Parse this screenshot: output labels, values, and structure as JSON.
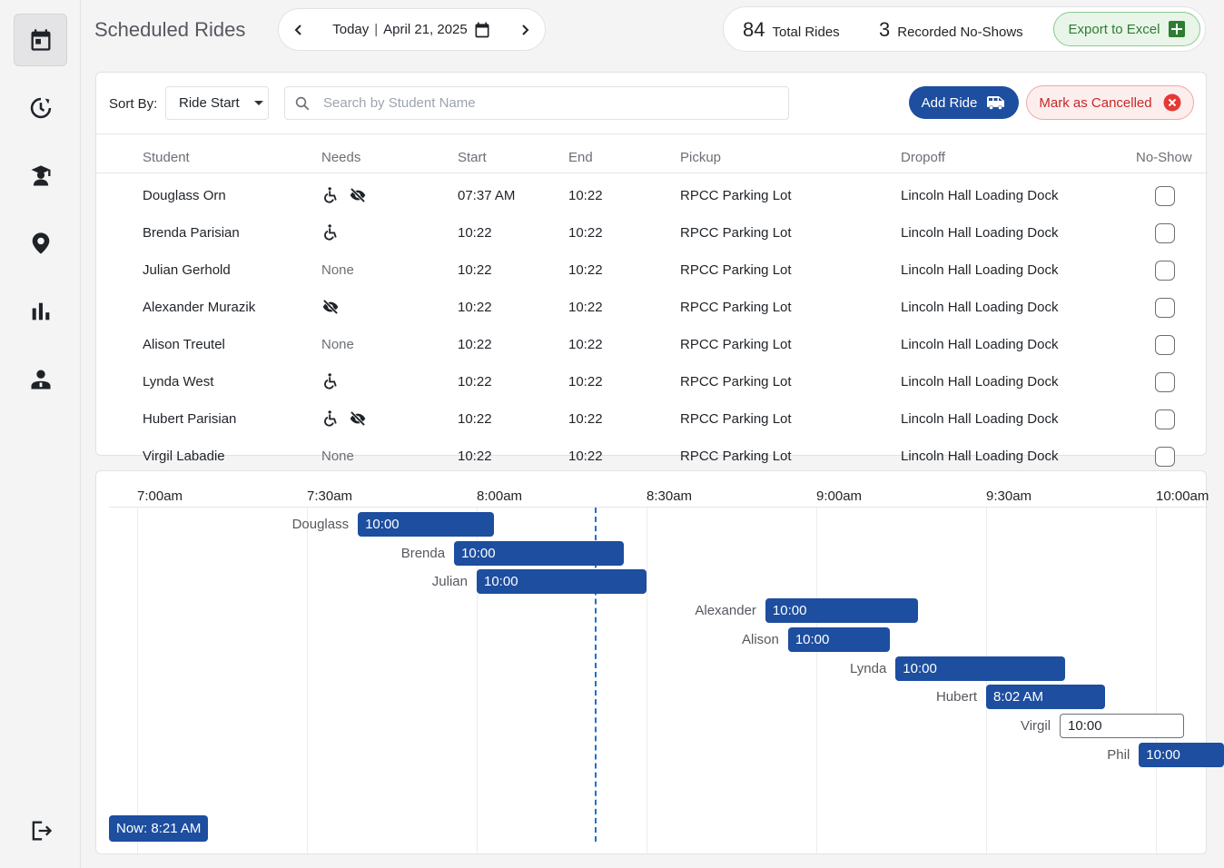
{
  "sidebar": {
    "items": [
      {
        "name": "calendar-icon",
        "active": true
      },
      {
        "name": "clock-icon",
        "active": false
      },
      {
        "name": "student-icon",
        "active": false
      },
      {
        "name": "location-icon",
        "active": false
      },
      {
        "name": "bar-chart-icon",
        "active": false
      },
      {
        "name": "admin-icon",
        "active": false
      }
    ],
    "logout_icon": "logout-icon"
  },
  "header": {
    "title": "Scheduled Rides",
    "date_nav": {
      "today_label": "Today",
      "separator": "|",
      "date": "April 21, 2025"
    },
    "stats": {
      "total_rides": "84",
      "total_rides_label": "Total Rides",
      "no_shows": "3",
      "no_shows_label": "Recorded No-Shows"
    },
    "export_label": "Export to Excel"
  },
  "toolbar": {
    "sort_label": "Sort By:",
    "sort_value": "Ride Start",
    "search_placeholder": "Search by Student Name",
    "add_ride_label": "Add Ride",
    "mark_cancelled_label": "Mark as Cancelled"
  },
  "table": {
    "columns": [
      "Student",
      "Needs",
      "Start",
      "End",
      "Pickup",
      "Dropoff",
      "No-Show"
    ],
    "rows": [
      {
        "student": "Douglass Orn",
        "needs": [
          "wheelchair",
          "visual"
        ],
        "start": "07:37 AM",
        "end": "10:22",
        "pickup": "RPCC Parking Lot",
        "dropoff": "Lincoln Hall Loading Dock",
        "no_show": false
      },
      {
        "student": "Brenda Parisian",
        "needs": [
          "wheelchair"
        ],
        "start": "10:22",
        "end": "10:22",
        "pickup": "RPCC Parking Lot",
        "dropoff": "Lincoln Hall Loading Dock",
        "no_show": false
      },
      {
        "student": "Julian Gerhold",
        "needs": [],
        "needs_text": "None",
        "start": "10:22",
        "end": "10:22",
        "pickup": "RPCC Parking Lot",
        "dropoff": "Lincoln Hall Loading Dock",
        "no_show": false
      },
      {
        "student": "Alexander Murazik",
        "needs": [
          "visual"
        ],
        "start": "10:22",
        "end": "10:22",
        "pickup": "RPCC Parking Lot",
        "dropoff": "Lincoln Hall Loading Dock",
        "no_show": false
      },
      {
        "student": "Alison Treutel",
        "needs": [],
        "needs_text": "None",
        "start": "10:22",
        "end": "10:22",
        "pickup": "RPCC Parking Lot",
        "dropoff": "Lincoln Hall Loading Dock",
        "no_show": false
      },
      {
        "student": "Lynda West",
        "needs": [
          "wheelchair"
        ],
        "start": "10:22",
        "end": "10:22",
        "pickup": "RPCC Parking Lot",
        "dropoff": "Lincoln Hall Loading Dock",
        "no_show": false
      },
      {
        "student": "Hubert Parisian",
        "needs": [
          "wheelchair",
          "visual"
        ],
        "start": "10:22",
        "end": "10:22",
        "pickup": "RPCC Parking Lot",
        "dropoff": "Lincoln Hall Loading Dock",
        "no_show": false
      },
      {
        "student": "Virgil Labadie",
        "needs": [],
        "needs_text": "None",
        "start": "10:22",
        "end": "10:22",
        "pickup": "RPCC Parking Lot",
        "dropoff": "Lincoln Hall Loading Dock",
        "no_show": false
      }
    ]
  },
  "timeline": {
    "ticks": [
      "7:00am",
      "7:30am",
      "8:00am",
      "8:30am",
      "9:00am",
      "9:30am",
      "10:00am"
    ],
    "now_label": "Now: 8:21 AM",
    "now_minutes": 81,
    "bars": [
      {
        "name": "Douglass",
        "label": "10:00",
        "start_min": 39,
        "end_min": 63,
        "style": "filled"
      },
      {
        "name": "Brenda",
        "label": "10:00",
        "start_min": 56,
        "end_min": 86,
        "style": "filled"
      },
      {
        "name": "Julian",
        "label": "10:00",
        "start_min": 60,
        "end_min": 90,
        "style": "filled"
      },
      {
        "name": "Alexander",
        "label": "10:00",
        "start_min": 111,
        "end_min": 138,
        "style": "filled"
      },
      {
        "name": "Alison",
        "label": "10:00",
        "start_min": 115,
        "end_min": 133,
        "style": "filled"
      },
      {
        "name": "Lynda",
        "label": "10:00",
        "start_min": 134,
        "end_min": 164,
        "style": "filled"
      },
      {
        "name": "Hubert",
        "label": "8:02 AM",
        "start_min": 150,
        "end_min": 171,
        "style": "filled"
      },
      {
        "name": "Virgil",
        "label": "10:00",
        "start_min": 163,
        "end_min": 185,
        "style": "outline"
      },
      {
        "name": "Phil",
        "label": "10:00",
        "start_min": 177,
        "end_min": 192,
        "style": "filled"
      }
    ]
  },
  "colors": {
    "primary": "#1d4e9f",
    "now_line": "#1d6fd1",
    "export_green": "#2e7d32",
    "cancel_red": "#c62828"
  }
}
